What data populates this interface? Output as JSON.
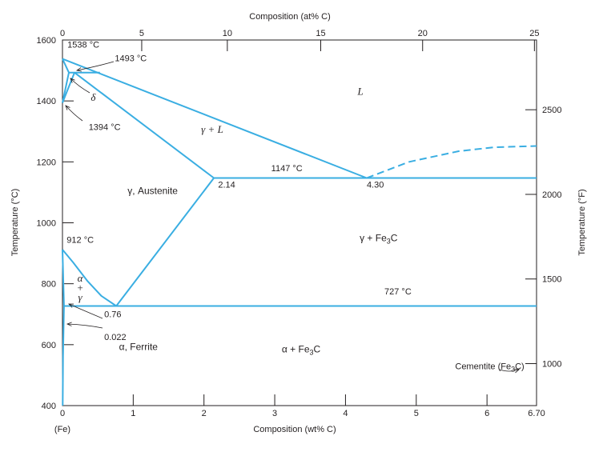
{
  "colors": {
    "phase_line": "#3aaee2",
    "frame": "#231f20",
    "text": "#231f20",
    "background": "#ffffff"
  },
  "axes": {
    "top_title": "Composition (at% C)",
    "bottom_title": "Composition (wt% C)",
    "left_title": "Temperature (°C)",
    "right_title": "Temperature (°F)",
    "bottom_iron_label": "(Fe)",
    "wt_range": [
      0,
      6.7
    ],
    "temp_c_range": [
      400,
      1600
    ]
  },
  "chart_data": {
    "type": "phase-diagram",
    "x_bottom_ticks": [
      {
        "value": 0,
        "label": "0"
      },
      {
        "value": 1,
        "label": "1"
      },
      {
        "value": 2,
        "label": "2"
      },
      {
        "value": 3,
        "label": "3"
      },
      {
        "value": 4,
        "label": "4"
      },
      {
        "value": 5,
        "label": "5"
      },
      {
        "value": 6,
        "label": "6"
      },
      {
        "value": 6.7,
        "label": "6.70"
      }
    ],
    "x_top_ticks": [
      {
        "at": 0,
        "wt": 0,
        "label": "0"
      },
      {
        "at": 5,
        "wt": 1.12,
        "label": "5"
      },
      {
        "at": 10,
        "wt": 2.33,
        "label": "10"
      },
      {
        "at": 15,
        "wt": 3.65,
        "label": "15"
      },
      {
        "at": 20,
        "wt": 5.09,
        "label": "20"
      },
      {
        "at": 25,
        "wt": 6.67,
        "label": "25"
      }
    ],
    "y_left_ticks": [
      {
        "value": 400,
        "label": "400"
      },
      {
        "value": 600,
        "label": "600"
      },
      {
        "value": 800,
        "label": "800"
      },
      {
        "value": 1000,
        "label": "1000"
      },
      {
        "value": 1200,
        "label": "1200"
      },
      {
        "value": 1400,
        "label": "1400"
      },
      {
        "value": 1600,
        "label": "1600"
      }
    ],
    "y_right_ticks": [
      {
        "f": 1000,
        "c": 537.8,
        "label": "1000"
      },
      {
        "f": 1500,
        "c": 815.6,
        "label": "1500"
      },
      {
        "f": 2000,
        "c": 1093.3,
        "label": "2000"
      },
      {
        "f": 2500,
        "c": 1371.1,
        "label": "2500"
      }
    ],
    "phase_lines": [
      {
        "style": "solid",
        "points": [
          [
            0,
            1538
          ],
          [
            0.09,
            1493
          ],
          [
            0.53,
            1493
          ]
        ]
      },
      {
        "style": "solid",
        "points": [
          [
            0,
            1538
          ],
          [
            4.3,
            1147
          ]
        ]
      },
      {
        "style": "solid",
        "points": [
          [
            0.17,
            1493
          ],
          [
            2.14,
            1147
          ]
        ]
      },
      {
        "style": "solid",
        "points": [
          [
            0,
            1394
          ],
          [
            0.09,
            1493
          ]
        ]
      },
      {
        "style": "solid",
        "points": [
          [
            0,
            1394
          ],
          [
            0.17,
            1493
          ]
        ]
      },
      {
        "style": "solid",
        "points": [
          [
            2.14,
            1147
          ],
          [
            6.7,
            1147
          ]
        ]
      },
      {
        "style": "solid",
        "points": [
          [
            2.14,
            1147
          ],
          [
            0.76,
            727
          ]
        ]
      },
      {
        "style": "solid",
        "points": [
          [
            0.022,
            727
          ],
          [
            6.7,
            727
          ]
        ]
      },
      {
        "style": "solid",
        "points": [
          [
            0,
            912
          ],
          [
            0.15,
            870
          ],
          [
            0.35,
            810
          ],
          [
            0.55,
            760
          ],
          [
            0.76,
            727
          ]
        ]
      },
      {
        "style": "solid",
        "points": [
          [
            0,
            912
          ],
          [
            0.022,
            727
          ]
        ]
      },
      {
        "style": "solid",
        "points": [
          [
            0.022,
            727
          ],
          [
            0.008,
            560
          ],
          [
            0.003,
            400
          ]
        ]
      },
      {
        "style": "dashed",
        "points": [
          [
            4.3,
            1147
          ],
          [
            4.9,
            1200
          ],
          [
            5.6,
            1235
          ],
          [
            6.1,
            1248
          ],
          [
            6.7,
            1252
          ]
        ]
      }
    ],
    "region_labels": [
      {
        "text": "L",
        "italic": true,
        "wt": 4.17,
        "c": 1420
      },
      {
        "text": "γ + L",
        "italic": true,
        "wt": 1.96,
        "c": 1295
      },
      {
        "text": "γ, Austenite",
        "italic": false,
        "wt": 0.92,
        "c": 1095
      },
      {
        "text": "γ + Fe3C",
        "italic": false,
        "wt": 4.2,
        "c": 940
      },
      {
        "text": "α + Fe3C",
        "italic": false,
        "wt": 3.1,
        "c": 575
      },
      {
        "text": "α, Ferrite",
        "italic": false,
        "wt": 0.8,
        "c": 582
      }
    ],
    "annotations": [
      {
        "text": "1538 °C",
        "wt": 0.07,
        "c": 1575
      },
      {
        "text": "1493 °C",
        "wt": 0.74,
        "c": 1530
      },
      {
        "text": "δ",
        "wt": 0.4,
        "c": 1400
      },
      {
        "text": "1394 °C",
        "wt": 0.37,
        "c": 1305
      },
      {
        "text": "1147 °C",
        "wt": 2.95,
        "c": 1170
      },
      {
        "text": "2.14",
        "wt": 2.2,
        "c": 1115
      },
      {
        "text": "4.30",
        "wt": 4.3,
        "c": 1115
      },
      {
        "text": "912 °C",
        "wt": 0.06,
        "c": 935
      },
      {
        "text": "727 °C",
        "wt": 4.55,
        "c": 765
      },
      {
        "text": "0.76",
        "wt": 0.59,
        "c": 690
      },
      {
        "text": "0.022",
        "wt": 0.59,
        "c": 615
      },
      {
        "text": "Cementite (Fe3C)",
        "wt": 5.55,
        "c": 520
      }
    ],
    "alpha_gamma_label": [
      "α",
      "+",
      "γ"
    ]
  }
}
